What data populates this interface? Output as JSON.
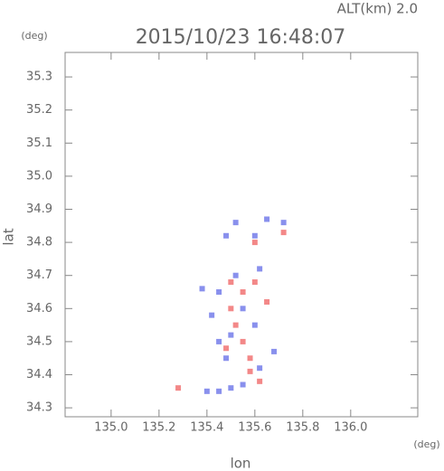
{
  "chart_data": {
    "type": "scatter",
    "title": "2015/10/23 16:48:07",
    "subtitle": "ALT(km) 2.0",
    "xlabel": "lon",
    "ylabel": "lat",
    "xunit": "(deg)",
    "yunit": "(deg)",
    "xlim": [
      134.808,
      136.28
    ],
    "ylim": [
      34.273,
      35.374
    ],
    "xticks": [
      {
        "value": 135,
        "label": "135.0"
      },
      135.2,
      135.4,
      135.6,
      135.8,
      {
        "value": 136,
        "label": "136.0"
      }
    ],
    "yticks": [
      34.3,
      34.4,
      34.5,
      34.6,
      34.7,
      34.8,
      34.9,
      {
        "value": 35,
        "label": "35.0"
      },
      35.1,
      35.2,
      35.3
    ],
    "series": [
      {
        "color": "#6b74e8",
        "x": [
          135.45,
          135.5,
          135.55,
          135.4,
          135.48,
          135.45,
          135.5,
          135.42,
          135.38,
          135.45,
          135.55,
          135.6,
          135.52,
          135.62,
          135.6,
          135.65,
          135.72,
          135.48,
          135.52,
          135.62,
          135.68
        ],
        "y": [
          34.35,
          34.36,
          34.37,
          34.35,
          34.45,
          34.5,
          34.52,
          34.58,
          34.66,
          34.65,
          34.6,
          34.55,
          34.7,
          34.72,
          34.82,
          34.87,
          34.86,
          34.82,
          34.86,
          34.42,
          34.47
        ]
      },
      {
        "color": "#f06a6a",
        "x": [
          135.28,
          135.62,
          135.58,
          135.55,
          135.52,
          135.5,
          135.55,
          135.6,
          135.5,
          135.65,
          135.6,
          135.72,
          135.58,
          135.48
        ],
        "y": [
          34.36,
          34.38,
          34.45,
          34.5,
          34.55,
          34.6,
          34.65,
          34.68,
          34.68,
          34.62,
          34.8,
          34.83,
          34.41,
          34.48
        ]
      }
    ]
  }
}
